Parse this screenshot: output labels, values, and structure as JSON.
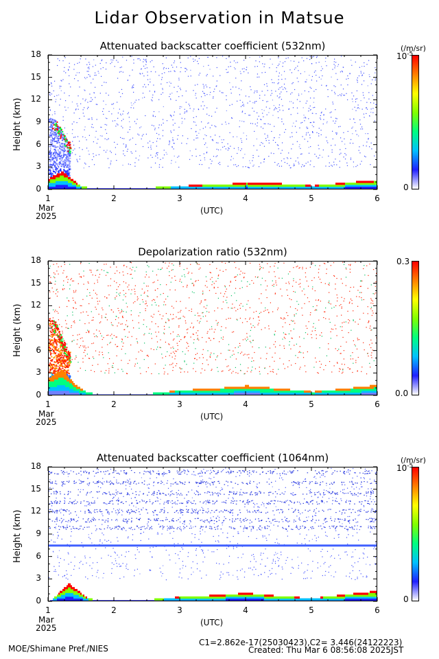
{
  "title": "Lidar Observation in Matsue",
  "footer": {
    "left": "MOE/Shimane Pref./NIES",
    "constants": "C1=2.862e-17(25030423),C2= 3.446(24122223)",
    "created": "Created: Thu Mar  6 08:56:08 2025JST"
  },
  "colors": {
    "colormap": [
      "#ffffff",
      "#2020ff",
      "#00c0ff",
      "#00ff80",
      "#80ff00",
      "#ffff00",
      "#ff8000",
      "#ff0000"
    ]
  },
  "chart_data": [
    {
      "type": "heatmap",
      "title": "Attenuated backscatter coefficient (532nm)",
      "ylabel": "Height (km)",
      "xlabel": "(UTC)",
      "x_ticks": [
        "1",
        "2",
        "3",
        "4",
        "5",
        "6"
      ],
      "x_sub": [
        "Mar",
        "2025"
      ],
      "y_ticks": [
        "0",
        "3",
        "6",
        "9",
        "12",
        "15",
        "18"
      ],
      "xlim": [
        1,
        6
      ],
      "ylim": [
        0,
        18
      ],
      "colorbar": {
        "min_label": "0",
        "max_label": "10",
        "max_exp": "-5",
        "unit": "(/m/sr)"
      },
      "boundary_layer_height_km": [
        [
          1.0,
          1.6
        ],
        [
          1.2,
          2.5
        ],
        [
          1.3,
          1.8
        ],
        [
          1.5,
          0.4
        ],
        [
          2.0,
          0.2
        ],
        [
          2.5,
          0.3
        ],
        [
          3.0,
          0.6
        ],
        [
          3.5,
          0.7
        ],
        [
          4.0,
          1.0
        ],
        [
          4.5,
          0.9
        ],
        [
          5.0,
          0.6
        ],
        [
          5.5,
          1.0
        ],
        [
          6.0,
          1.4
        ]
      ],
      "high_cloud_km": [
        [
          1.0,
          10.0
        ],
        [
          1.1,
          9.5
        ],
        [
          1.2,
          8.0
        ],
        [
          1.3,
          6.5
        ]
      ]
    },
    {
      "type": "heatmap",
      "title": "Depolarization ratio (532nm)",
      "ylabel": "Height (km)",
      "xlabel": "(UTC)",
      "x_ticks": [
        "1",
        "2",
        "3",
        "4",
        "5",
        "6"
      ],
      "x_sub": [
        "Mar",
        "2025"
      ],
      "y_ticks": [
        "0",
        "3",
        "6",
        "9",
        "12",
        "15",
        "18"
      ],
      "xlim": [
        1,
        6
      ],
      "ylim": [
        0,
        18
      ],
      "colorbar": {
        "min_label": "0.0",
        "max_label": "0.3",
        "max_exp": "",
        "unit": ""
      },
      "boundary_layer_height_km": [
        [
          1.0,
          2.5
        ],
        [
          1.2,
          3.5
        ],
        [
          1.4,
          1.5
        ],
        [
          1.6,
          0.4
        ],
        [
          2.0,
          0.2
        ],
        [
          2.5,
          0.3
        ],
        [
          3.0,
          0.8
        ],
        [
          3.5,
          1.0
        ],
        [
          4.0,
          1.4
        ],
        [
          4.5,
          1.0
        ],
        [
          5.0,
          0.6
        ],
        [
          5.5,
          1.0
        ],
        [
          6.0,
          1.5
        ]
      ],
      "high_cloud_km": [
        [
          1.0,
          10.5
        ],
        [
          1.1,
          10.0
        ],
        [
          1.2,
          8.0
        ],
        [
          1.3,
          6.0
        ]
      ]
    },
    {
      "type": "heatmap",
      "title": "Attenuated backscatter coefficient (1064nm)",
      "ylabel": "Height (km)",
      "xlabel": "(UTC)",
      "x_ticks": [
        "1",
        "2",
        "3",
        "4",
        "5",
        "6"
      ],
      "x_sub": [
        "Mar",
        "2025"
      ],
      "y_ticks": [
        "0",
        "3",
        "6",
        "9",
        "12",
        "15",
        "18"
      ],
      "xlim": [
        1,
        6
      ],
      "ylim": [
        0,
        18
      ],
      "colorbar": {
        "min_label": "0",
        "max_label": "10",
        "max_exp": "-5",
        "unit": "(/m/sr)"
      },
      "boundary_layer_height_km": [
        [
          1.0,
          0.0
        ],
        [
          1.3,
          2.5
        ],
        [
          1.6,
          0.4
        ],
        [
          2.0,
          0.2
        ],
        [
          2.5,
          0.3
        ],
        [
          3.0,
          0.7
        ],
        [
          3.5,
          0.9
        ],
        [
          4.0,
          1.2
        ],
        [
          4.5,
          0.8
        ],
        [
          5.0,
          0.5
        ],
        [
          5.5,
          1.0
        ],
        [
          6.0,
          1.5
        ]
      ],
      "artifact_line_km": 7.6
    }
  ]
}
